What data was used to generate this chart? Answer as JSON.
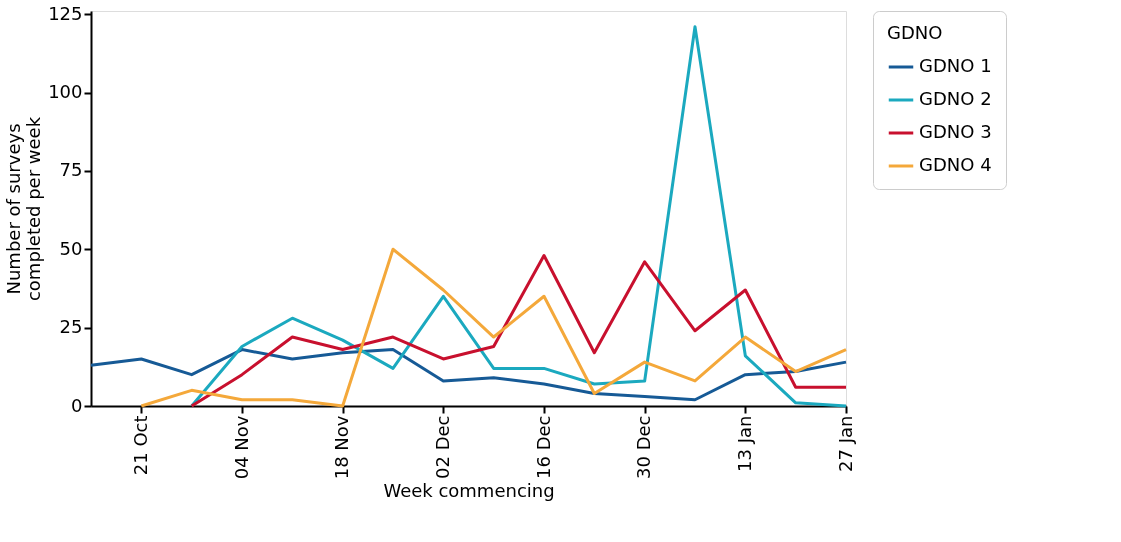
{
  "chart_data": {
    "type": "line",
    "xlabel": "Week commencing",
    "ylabel": "Number of surveys\ncompleted per week",
    "legend_title": "GDNO",
    "legend": "right",
    "categories": [
      null,
      "21 Oct",
      null,
      "04 Nov",
      null,
      "18 Nov",
      null,
      "02 Dec",
      null,
      "16 Dec",
      null,
      "30 Dec",
      null,
      "13 Jan",
      null,
      "27 Jan"
    ],
    "ylim": [
      0,
      126
    ],
    "yticks": [
      0,
      25,
      50,
      75,
      100,
      125
    ],
    "grid": false,
    "line_style": "solid",
    "marker": "none",
    "series": [
      {
        "name": "GDNO 1",
        "color": "#165a96",
        "values": [
          13,
          15,
          10,
          18,
          15,
          17,
          18,
          8,
          9,
          7,
          4,
          3,
          2,
          10,
          11,
          14
        ]
      },
      {
        "name": "GDNO 2",
        "color": "#1ba9bf",
        "values": [
          null,
          null,
          0,
          19,
          28,
          21,
          12,
          35,
          12,
          12,
          7,
          8,
          121,
          16,
          1,
          0
        ]
      },
      {
        "name": "GDNO 3",
        "color": "#c8102e",
        "values": [
          null,
          null,
          0,
          10,
          22,
          18,
          22,
          15,
          19,
          48,
          17,
          46,
          24,
          37,
          6,
          6
        ]
      },
      {
        "name": "GDNO 4",
        "color": "#f4a83a",
        "values": [
          null,
          0,
          5,
          2,
          2,
          0,
          50,
          37,
          22,
          35,
          4,
          14,
          8,
          22,
          11,
          18
        ]
      }
    ]
  }
}
